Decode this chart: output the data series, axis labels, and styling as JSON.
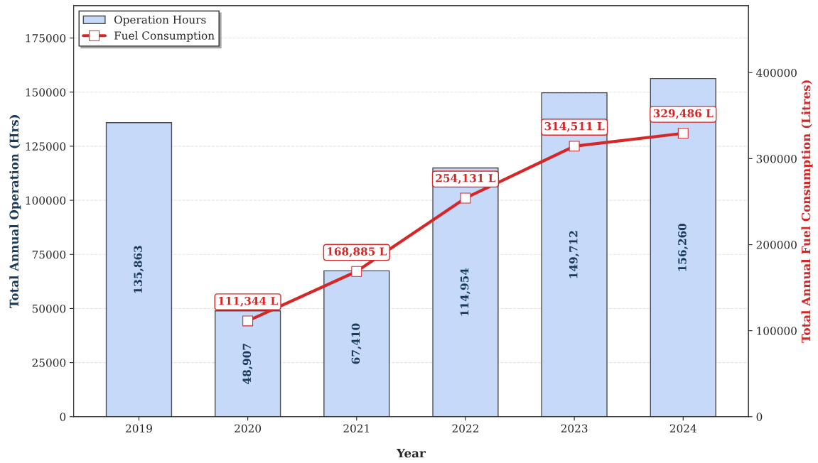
{
  "chart_data": {
    "type": "bar",
    "xlabel": "Year",
    "ylabel": "Total Annual Operation (Hrs)",
    "y2label": "Total Annual Fuel Consumption (Litres)",
    "categories": [
      "2019",
      "2020",
      "2021",
      "2022",
      "2023",
      "2024"
    ],
    "series": [
      {
        "name": "Operation Hours",
        "color": "#c6d9f9",
        "values": [
          135863,
          48907,
          67410,
          114954,
          149712,
          156260
        ],
        "value_labels": [
          "135,863",
          "48,907",
          "67,410",
          "114,954",
          "149,712",
          "156,260"
        ]
      },
      {
        "name": "Fuel Consumption",
        "type": "line",
        "axis": "y2",
        "color": "#d62728",
        "marker": "square",
        "values": [
          null,
          111344,
          168885,
          254131,
          314511,
          329486
        ],
        "value_labels": [
          null,
          "111,344 L",
          "168,885 L",
          "254,131 L",
          "314,511 L",
          "329,486 L"
        ]
      }
    ],
    "ylim": [
      0,
      190000
    ],
    "yticks": [
      0,
      25000,
      50000,
      75000,
      100000,
      125000,
      150000,
      175000
    ],
    "y2lim": [
      0,
      478000
    ],
    "y2ticks": [
      0,
      100000,
      200000,
      300000,
      400000
    ],
    "grid": "y",
    "legend": "top left"
  }
}
